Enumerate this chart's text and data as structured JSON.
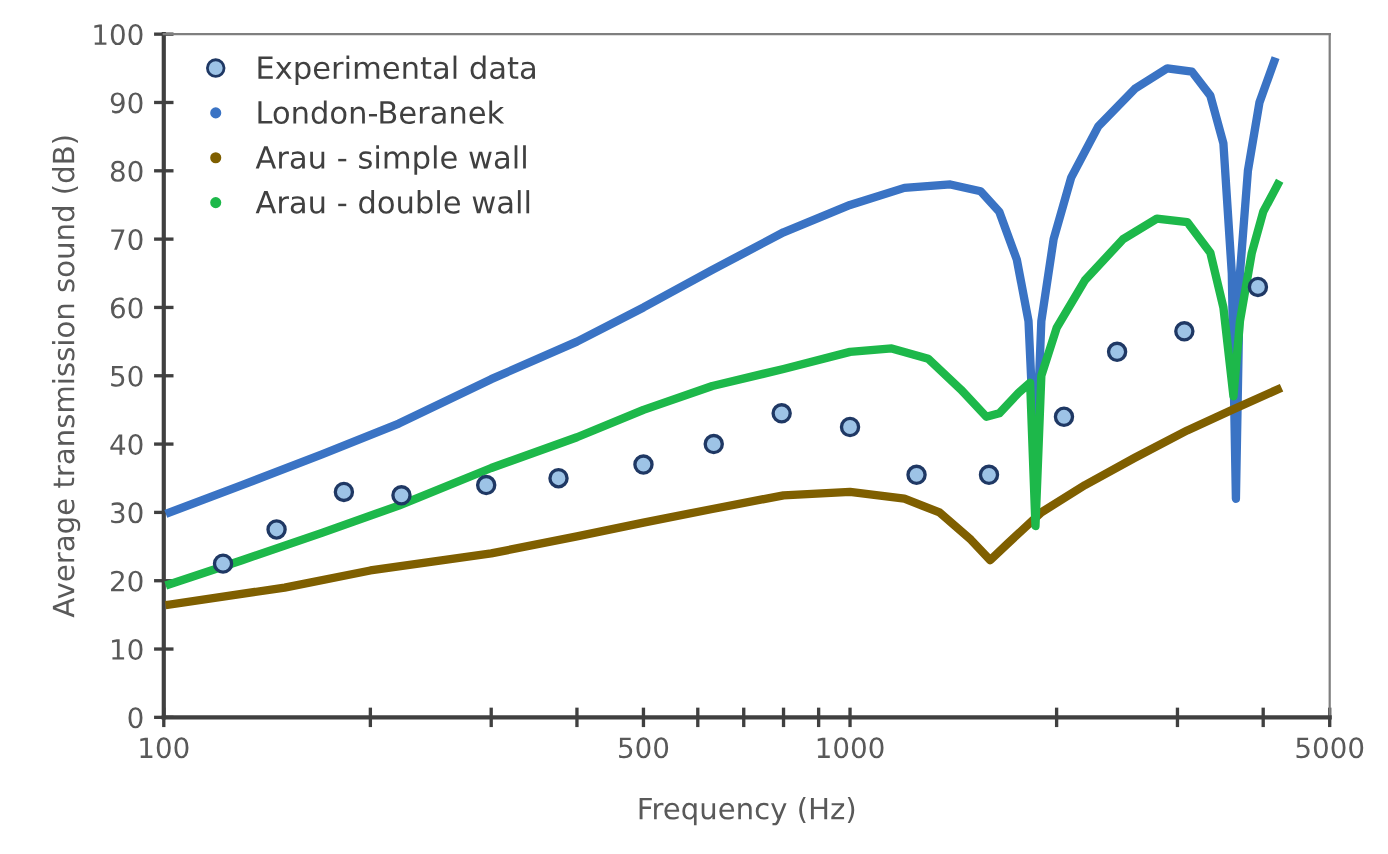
{
  "chart_data": {
    "type": "line",
    "xlabel": "Frequency (Hz)",
    "ylabel": "Average transmission sound (dB)",
    "log": "x",
    "xlim": [
      100,
      5000
    ],
    "xticks": [
      100,
      {
        "value": 200,
        "label": null
      },
      {
        "value": 300,
        "label": null
      },
      {
        "value": 400,
        "label": null
      },
      500,
      {
        "value": 600,
        "label": null
      },
      {
        "value": 700,
        "label": null
      },
      {
        "value": 800,
        "label": null
      },
      {
        "value": 900,
        "label": null
      },
      1000,
      {
        "value": 2000,
        "label": null
      },
      {
        "value": 3000,
        "label": null
      },
      {
        "value": 4000,
        "label": null
      },
      5000
    ],
    "ylim": [
      0,
      100
    ],
    "yticks": [
      0,
      10,
      20,
      30,
      40,
      50,
      60,
      70,
      80,
      90,
      100
    ],
    "grid": false,
    "legend": "top left",
    "series": [
      {
        "name": "Experimental data",
        "type": "scatter",
        "marker": "circle",
        "color": "#9dc3e6",
        "x": [
          122,
          146,
          183,
          222,
          295,
          376,
          500,
          633,
          795,
          1000,
          1250,
          1594,
          2050,
          2450,
          3070,
          3930
        ],
        "values": [
          22.5,
          27.5,
          33,
          32.5,
          34,
          35,
          37,
          40,
          44.5,
          42.5,
          35.5,
          35.5,
          44,
          53.5,
          56.5,
          63
        ]
      },
      {
        "name": "London-Beranek",
        "color": "#3a73c4",
        "x": [
          102,
          130,
          170,
          220,
          300,
          400,
          500,
          630,
          800,
          1000,
          1200,
          1400,
          1550,
          1650,
          1750,
          1820,
          1863,
          1900,
          1980,
          2100,
          2300,
          2600,
          2900,
          3150,
          3350,
          3500,
          3600,
          3650,
          3700,
          3800,
          3950,
          4150
        ],
        "values": [
          30,
          34,
          38.5,
          43,
          49.5,
          55,
          60,
          65.5,
          71,
          75,
          77.5,
          78,
          77,
          74,
          67,
          58,
          36,
          58,
          70,
          79,
          86.5,
          92,
          95,
          94.5,
          91,
          84,
          65,
          32,
          65,
          80,
          90,
          96
        ]
      },
      {
        "name": "Arau - simple wall",
        "color": "#7f5f00",
        "x": [
          102,
          150,
          200,
          300,
          400,
          500,
          630,
          800,
          1000,
          1200,
          1350,
          1500,
          1600,
          1700,
          1900,
          2200,
          2600,
          3100,
          3600,
          4200
        ],
        "values": [
          16.5,
          19,
          21.5,
          24,
          26.5,
          28.5,
          30.5,
          32.5,
          33,
          32,
          30,
          26,
          23,
          25.5,
          30,
          34,
          38,
          42,
          45,
          48
        ]
      },
      {
        "name": "Arau - double wall",
        "color": "#1db84a",
        "x": [
          102,
          130,
          170,
          220,
          300,
          400,
          500,
          630,
          800,
          1000,
          1150,
          1300,
          1450,
          1580,
          1650,
          1760,
          1830,
          1863,
          1900,
          2000,
          2200,
          2500,
          2800,
          3100,
          3350,
          3500,
          3620,
          3700,
          3850,
          4000,
          4200
        ],
        "values": [
          19.5,
          23,
          27,
          31,
          36.5,
          41,
          45,
          48.5,
          51,
          53.5,
          54,
          52.5,
          48,
          44,
          44.5,
          47.5,
          49,
          28,
          50,
          57,
          64,
          70,
          73,
          72.5,
          68,
          60,
          47,
          58,
          68,
          74,
          78
        ]
      }
    ]
  }
}
